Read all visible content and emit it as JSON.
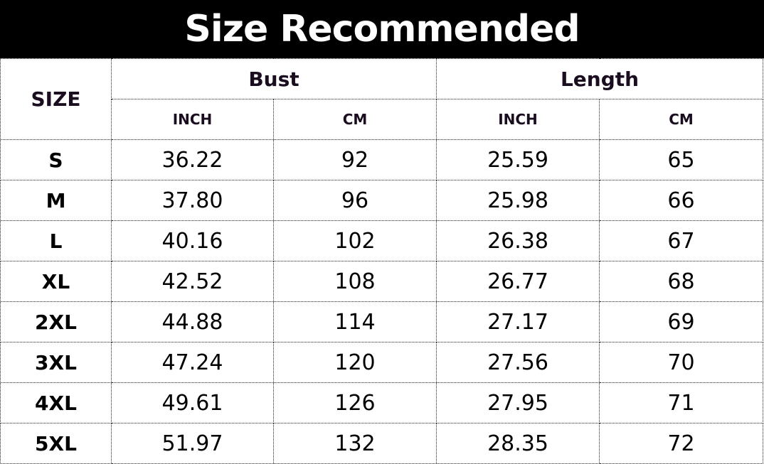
{
  "title": "Size Recommended",
  "headers": {
    "size": "SIZE",
    "groups": [
      "Bust",
      "Length"
    ],
    "units": [
      "INCH",
      "CM",
      "INCH",
      "CM"
    ]
  },
  "rows": [
    {
      "size": "S",
      "bust_inch": "36.22",
      "bust_cm": "92",
      "length_inch": "25.59",
      "length_cm": "65"
    },
    {
      "size": "M",
      "bust_inch": "37.80",
      "bust_cm": "96",
      "length_inch": "25.98",
      "length_cm": "66"
    },
    {
      "size": "L",
      "bust_inch": "40.16",
      "bust_cm": "102",
      "length_inch": "26.38",
      "length_cm": "67"
    },
    {
      "size": "XL",
      "bust_inch": "42.52",
      "bust_cm": "108",
      "length_inch": "26.77",
      "length_cm": "68"
    },
    {
      "size": "2XL",
      "bust_inch": "44.88",
      "bust_cm": "114",
      "length_inch": "27.17",
      "length_cm": "69"
    },
    {
      "size": "3XL",
      "bust_inch": "47.24",
      "bust_cm": "120",
      "length_inch": "27.56",
      "length_cm": "70"
    },
    {
      "size": "4XL",
      "bust_inch": "49.61",
      "bust_cm": "126",
      "length_inch": "27.95",
      "length_cm": "71"
    },
    {
      "size": "5XL",
      "bust_inch": "51.97",
      "bust_cm": "132",
      "length_inch": "28.35",
      "length_cm": "72"
    }
  ]
}
